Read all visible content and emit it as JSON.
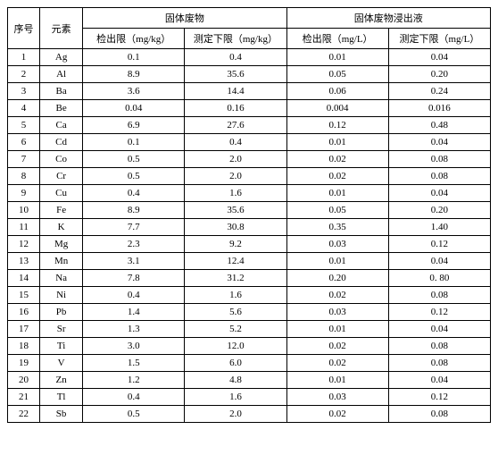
{
  "headers": {
    "idx": "序号",
    "elem": "元素",
    "solid_waste": "固体废物",
    "leachate": "固体废物浸出液",
    "det_limit_kg": "检出限（mg/kg）",
    "low_limit_kg": "测定下限（mg/kg）",
    "det_limit_l": "检出限（mg/L）",
    "low_limit_l": "测定下限（mg/L）"
  },
  "rows": [
    {
      "n": "1",
      "el": "Ag",
      "a": "0.1",
      "b": "0.4",
      "c": "0.01",
      "d": "0.04"
    },
    {
      "n": "2",
      "el": "Al",
      "a": "8.9",
      "b": "35.6",
      "c": "0.05",
      "d": "0.20"
    },
    {
      "n": "3",
      "el": "Ba",
      "a": "3.6",
      "b": "14.4",
      "c": "0.06",
      "d": "0.24"
    },
    {
      "n": "4",
      "el": "Be",
      "a": "0.04",
      "b": "0.16",
      "c": "0.004",
      "d": "0.016"
    },
    {
      "n": "5",
      "el": "Ca",
      "a": "6.9",
      "b": "27.6",
      "c": "0.12",
      "d": "0.48"
    },
    {
      "n": "6",
      "el": "Cd",
      "a": "0.1",
      "b": "0.4",
      "c": "0.01",
      "d": "0.04"
    },
    {
      "n": "7",
      "el": "Co",
      "a": "0.5",
      "b": "2.0",
      "c": "0.02",
      "d": "0.08"
    },
    {
      "n": "8",
      "el": "Cr",
      "a": "0.5",
      "b": "2.0",
      "c": "0.02",
      "d": "0.08"
    },
    {
      "n": "9",
      "el": "Cu",
      "a": "0.4",
      "b": "1.6",
      "c": "0.01",
      "d": "0.04"
    },
    {
      "n": "10",
      "el": "Fe",
      "a": "8.9",
      "b": "35.6",
      "c": "0.05",
      "d": "0.20"
    },
    {
      "n": "11",
      "el": "K",
      "a": "7.7",
      "b": "30.8",
      "c": "0.35",
      "d": "1.40"
    },
    {
      "n": "12",
      "el": "Mg",
      "a": "2.3",
      "b": "9.2",
      "c": "0.03",
      "d": "0.12"
    },
    {
      "n": "13",
      "el": "Mn",
      "a": "3.1",
      "b": "12.4",
      "c": "0.01",
      "d": "0.04"
    },
    {
      "n": "14",
      "el": "Na",
      "a": "7.8",
      "b": "31.2",
      "c": "0.20",
      "d": "0. 80"
    },
    {
      "n": "15",
      "el": "Ni",
      "a": "0.4",
      "b": "1.6",
      "c": "0.02",
      "d": "0.08"
    },
    {
      "n": "16",
      "el": "Pb",
      "a": "1.4",
      "b": "5.6",
      "c": "0.03",
      "d": "0.12"
    },
    {
      "n": "17",
      "el": "Sr",
      "a": "1.3",
      "b": "5.2",
      "c": "0.01",
      "d": "0.04"
    },
    {
      "n": "18",
      "el": "Ti",
      "a": "3.0",
      "b": "12.0",
      "c": "0.02",
      "d": "0.08"
    },
    {
      "n": "19",
      "el": "V",
      "a": "1.5",
      "b": "6.0",
      "c": "0.02",
      "d": "0.08"
    },
    {
      "n": "20",
      "el": "Zn",
      "a": "1.2",
      "b": "4.8",
      "c": "0.01",
      "d": "0.04"
    },
    {
      "n": "21",
      "el": "Tl",
      "a": "0.4",
      "b": "1.6",
      "c": "0.03",
      "d": "0.12"
    },
    {
      "n": "22",
      "el": "Sb",
      "a": "0.5",
      "b": "2.0",
      "c": "0.02",
      "d": "0.08"
    }
  ],
  "style": {
    "font_size": 11,
    "border_color": "#000000",
    "background": "#ffffff"
  }
}
